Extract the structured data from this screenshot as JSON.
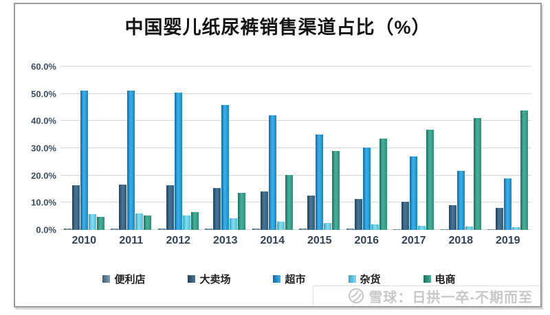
{
  "title": "中国婴儿纸尿裤销售渠道占比（%）",
  "watermark": {
    "logo": "xueqiu-snowball-logo",
    "source_label": "雪球：日拱一卒-不期而至",
    "color": "#c8c8c8"
  },
  "chart_data": {
    "type": "bar",
    "title": "中国婴儿纸尿裤销售渠道占比（%）",
    "categories": [
      "2010",
      "2011",
      "2012",
      "2013",
      "2014",
      "2015",
      "2016",
      "2017",
      "2018",
      "2019"
    ],
    "series": [
      {
        "name": "便利店",
        "color": "#5b7b96",
        "gradient": {
          "dark": "#3d6078",
          "light": "#7da0ba",
          "mid": "#54789a"
        },
        "values": [
          0.5,
          0.5,
          0.5,
          0.5,
          0.5,
          0.4,
          0.4,
          0.3,
          0.3,
          0.3
        ]
      },
      {
        "name": "大卖场",
        "color": "#2d5976",
        "gradient": {
          "dark": "#1f4258",
          "light": "#47779a",
          "mid": "#2d5976"
        },
        "values": [
          16.3,
          16.6,
          16.3,
          15.3,
          14.0,
          12.7,
          11.4,
          10.4,
          9.2,
          8.0
        ]
      },
      {
        "name": "超市",
        "color": "#1692d2",
        "gradient": {
          "dark": "#0c6ba5",
          "light": "#3db1ec",
          "mid": "#1388c4"
        },
        "values": [
          51.2,
          51.2,
          50.3,
          45.8,
          42.2,
          35.0,
          30.3,
          26.9,
          21.7,
          18.9
        ]
      },
      {
        "name": "杂货",
        "color": "#55c3e2",
        "gradient": {
          "dark": "#35a6cb",
          "light": "#84def2",
          "mid": "#4fc0e0"
        },
        "values": [
          5.8,
          6.0,
          5.3,
          4.4,
          3.0,
          2.5,
          2.0,
          1.4,
          1.3,
          1.0
        ]
      },
      {
        "name": "电商",
        "color": "#2d937f",
        "gradient": {
          "dark": "#1b6f60",
          "light": "#46b299",
          "mid": "#2a8f7c"
        },
        "values": [
          4.8,
          5.3,
          6.5,
          13.5,
          20.2,
          29.0,
          33.6,
          36.8,
          41.2,
          43.8
        ]
      }
    ],
    "xlabel": "",
    "ylabel": "",
    "ylim": [
      0,
      60
    ],
    "ytick_labels": [
      "0.0%",
      "10.0%",
      "20.0%",
      "30.0%",
      "40.0%",
      "50.0%",
      "60.0%"
    ],
    "grid": true,
    "legend_position": "bottom"
  }
}
